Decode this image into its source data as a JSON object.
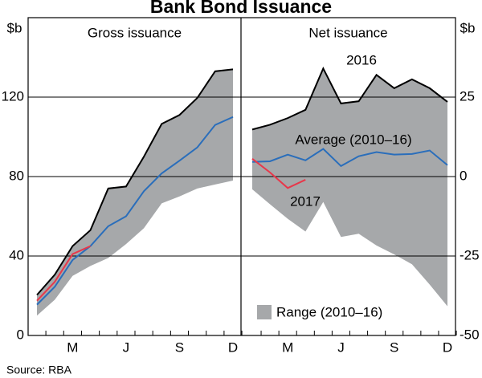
{
  "title": "Bank Bond Issuance",
  "source": "Source:   RBA",
  "chart_data": [
    {
      "type": "line",
      "subtitle": "Gross issuance",
      "y_label": "$b",
      "categories": [
        null,
        null,
        "M",
        null,
        null,
        "J",
        null,
        null,
        "S",
        null,
        null,
        "D"
      ],
      "ylim": [
        0,
        160
      ],
      "yticks": [
        0,
        40,
        80,
        120
      ],
      "grid": true,
      "series": [
        {
          "type": "range",
          "color": "#a6a8aa",
          "low": [
            10,
            18,
            30,
            35,
            39,
            46,
            54,
            66.5,
            70,
            74,
            76,
            78
          ],
          "high": [
            20.4,
            30.6,
            45,
            53,
            74,
            75,
            90,
            106.5,
            111,
            119.6,
            133,
            134
          ]
        },
        {
          "color": "#000000",
          "values": [
            20.4,
            30.6,
            45,
            53,
            74,
            75,
            90,
            106.5,
            111,
            119.6,
            133,
            134
          ]
        },
        {
          "color": "#2a6ebb",
          "values": [
            15.5,
            24.5,
            38,
            45,
            55,
            60,
            72.6,
            81.6,
            88,
            94.7,
            106,
            110
          ]
        },
        {
          "color": "#e8374a",
          "values": [
            17.5,
            27,
            41,
            45,
            null,
            null,
            null,
            null,
            null,
            null,
            null,
            null
          ]
        }
      ]
    },
    {
      "type": "line",
      "subtitle": "Net issuance",
      "y_label": "$b",
      "categories": [
        null,
        null,
        "M",
        null,
        null,
        "J",
        null,
        null,
        "S",
        null,
        null,
        "D"
      ],
      "ylim": [
        -50,
        50
      ],
      "yticks": [
        -50,
        -25,
        0,
        25
      ],
      "grid": true,
      "series": [
        {
          "name": "Range (2010–16)",
          "type": "range",
          "color": "#a6a8aa",
          "low": [
            -4,
            -8.7,
            -13.3,
            -17.3,
            -8,
            -19,
            -18,
            -21.7,
            -24.5,
            -27.6,
            -34,
            -40.8
          ],
          "high": [
            14.8,
            16.3,
            18.4,
            21,
            34,
            23,
            23.7,
            32,
            27.8,
            30.6,
            27.8,
            23.5
          ]
        },
        {
          "name": "2016",
          "color": "#000000",
          "values": [
            14.8,
            16.3,
            18.4,
            21,
            34,
            23,
            23.7,
            32,
            27.8,
            30.6,
            27.8,
            23.5
          ]
        },
        {
          "name": "Average (2010–16)",
          "color": "#2a6ebb",
          "values": [
            4.6,
            4.8,
            6.9,
            5.1,
            8.7,
            3.3,
            6.4,
            7.7,
            6.9,
            7.1,
            8.2,
            3.6
          ]
        },
        {
          "name": "2017",
          "color": "#e8374a",
          "values": [
            5.6,
            1.3,
            -3.6,
            -1,
            null,
            null,
            null,
            null,
            null,
            null,
            null,
            null
          ]
        }
      ]
    }
  ]
}
